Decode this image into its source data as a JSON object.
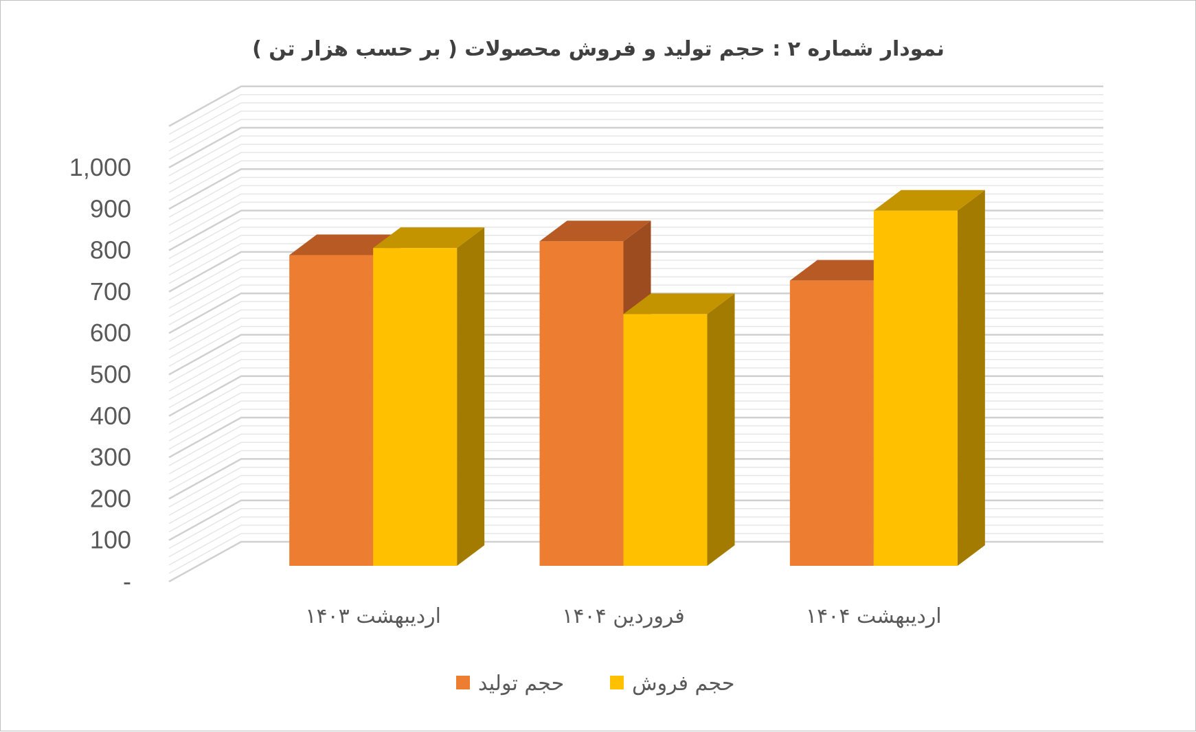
{
  "chart_data": {
    "type": "bar",
    "title": "نمودار شماره ۲ : حجم  تولید و فروش محصولات ( بر حسب هزار تن )",
    "categories": [
      "اردیبهشت ۱۴۰۳",
      "فروردین ۱۴۰۴",
      "اردیبهشت ۱۴۰۴"
    ],
    "series": [
      {
        "name": "حجم تولید",
        "values": [
          790,
          825,
          725
        ],
        "color": "#ED7D31",
        "top_color": "#B85A24",
        "side_color": "#9C4C1E"
      },
      {
        "name": "حجم فروش",
        "values": [
          808,
          640,
          903
        ],
        "color": "#FFC000",
        "top_color": "#C49400",
        "side_color": "#A37B00"
      }
    ],
    "ylim": [
      0,
      1000
    ],
    "yticks": [
      0,
      100,
      200,
      300,
      400,
      500,
      600,
      700,
      800,
      900,
      1000
    ],
    "ytick_labels": [
      "-",
      "100",
      "200",
      "300",
      "400",
      "500",
      "600",
      "700",
      "800",
      "900",
      "1,000"
    ],
    "xlabel": "",
    "ylabel": "",
    "grid": true,
    "style": "3d-clustered-column",
    "legend_position": "bottom"
  }
}
